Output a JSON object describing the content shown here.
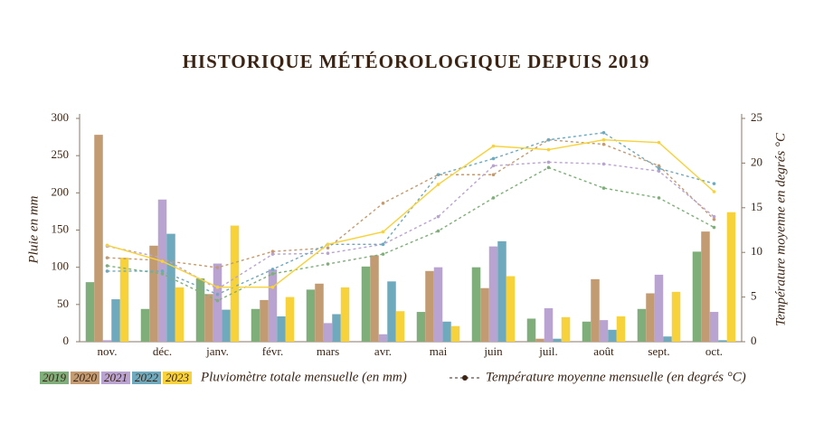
{
  "chart_data": {
    "type": "bar",
    "title": "HISTORIQUE MÉTÉOROLOGIQUE DEPUIS 2019",
    "y_label": "Pluie en mm",
    "y2_label": "Température moyenne en degrés °C",
    "rain_legend": "Pluviomètre totale mensuelle (en mm)",
    "temperature_legend": "Température moyenne mensuelle (en degrés °C)",
    "categories": [
      "nov.",
      "déc.",
      "janv.",
      "févr.",
      "mars",
      "avr.",
      "mai",
      "juin",
      "juil.",
      "août",
      "sept.",
      "oct."
    ],
    "ylim": [
      0,
      300
    ],
    "yticks": [
      0,
      50,
      100,
      150,
      200,
      250,
      300
    ],
    "y2lim": [
      0,
      25
    ],
    "y2ticks": [
      0,
      5,
      10,
      15,
      20,
      25
    ],
    "series": [
      {
        "name": "2019",
        "color": "#7fae7a",
        "dashed": true,
        "values": [
          80,
          44,
          85,
          44,
          70,
          101,
          40,
          100,
          31,
          27,
          44,
          121
        ],
        "temperatures": [
          8.5,
          7.6,
          4.6,
          7.6,
          8.7,
          9.8,
          12.4,
          16.1,
          19.5,
          17.2,
          16.1,
          12.8
        ]
      },
      {
        "name": "2020",
        "color": "#c29b72",
        "dashed": true,
        "values": [
          278,
          129,
          64,
          56,
          78,
          116,
          95,
          72,
          4,
          84,
          65,
          148
        ],
        "temperatures": [
          9.4,
          9.1,
          8.3,
          10.1,
          10.5,
          15.5,
          18.7,
          18.7,
          22.6,
          22.1,
          19.7,
          13.7
        ]
      },
      {
        "name": "2021",
        "color": "#b9a3d0",
        "dashed": true,
        "values": [
          2,
          191,
          105,
          97,
          25,
          10,
          100,
          128,
          45,
          29,
          90,
          40
        ],
        "temperatures": [
          10.7,
          9.4,
          5.9,
          9.8,
          9.9,
          10.9,
          14,
          19.7,
          20.1,
          19.9,
          19.1,
          14
        ]
      },
      {
        "name": "2022",
        "color": "#6fa9bd",
        "dashed": true,
        "values": [
          57,
          145,
          43,
          34,
          37,
          81,
          27,
          135,
          4,
          16,
          7,
          2
        ],
        "temperatures": [
          7.9,
          7.9,
          5.3,
          8.1,
          10.9,
          10.9,
          18.7,
          20.5,
          22.6,
          23.4,
          19.4,
          17.7
        ]
      },
      {
        "name": "2023",
        "color": "#f7d23a",
        "dashed": false,
        "values": [
          113,
          73,
          156,
          60,
          73,
          41,
          21,
          88,
          33,
          34,
          67,
          174
        ],
        "temperatures": [
          10.8,
          9.0,
          6.1,
          6.1,
          10.9,
          12.3,
          17.6,
          21.9,
          21.5,
          22.6,
          22.3,
          16.8
        ]
      }
    ]
  }
}
